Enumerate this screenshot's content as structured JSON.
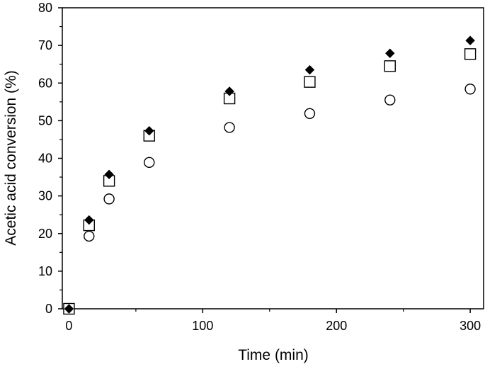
{
  "chart_data": {
    "type": "scatter",
    "title": "",
    "xlabel": "Time (min)",
    "ylabel": "Acetic acid conversion (%)",
    "xlim": [
      -5,
      310
    ],
    "ylim": [
      0,
      80
    ],
    "x_ticks": [
      0,
      100,
      200,
      300
    ],
    "y_ticks": [
      0,
      10,
      20,
      30,
      40,
      50,
      60,
      70,
      80
    ],
    "x_tick_labels": [
      "0",
      "100",
      "200",
      "300"
    ],
    "y_tick_labels": [
      "0",
      "10",
      "20",
      "30",
      "40",
      "50",
      "60",
      "70",
      "80"
    ],
    "grid": false,
    "legend": "none",
    "series": [
      {
        "marker": "diamond-filled",
        "color": "#000000",
        "x": [
          0,
          15,
          30,
          60,
          120,
          180,
          240,
          300
        ],
        "y": [
          0,
          23.6,
          35.7,
          47.3,
          57.8,
          63.5,
          67.9,
          71.3
        ]
      },
      {
        "marker": "square-open",
        "color": "#000000",
        "x": [
          0,
          15,
          30,
          60,
          120,
          180,
          240,
          300
        ],
        "y": [
          0,
          22.2,
          34.0,
          46.0,
          55.9,
          60.3,
          64.5,
          67.7
        ]
      },
      {
        "marker": "circle-open",
        "color": "#000000",
        "x": [
          0,
          15,
          30,
          60,
          120,
          180,
          240,
          300
        ],
        "y": [
          0,
          19.3,
          29.2,
          38.9,
          48.2,
          51.9,
          55.5,
          58.4
        ]
      }
    ]
  }
}
